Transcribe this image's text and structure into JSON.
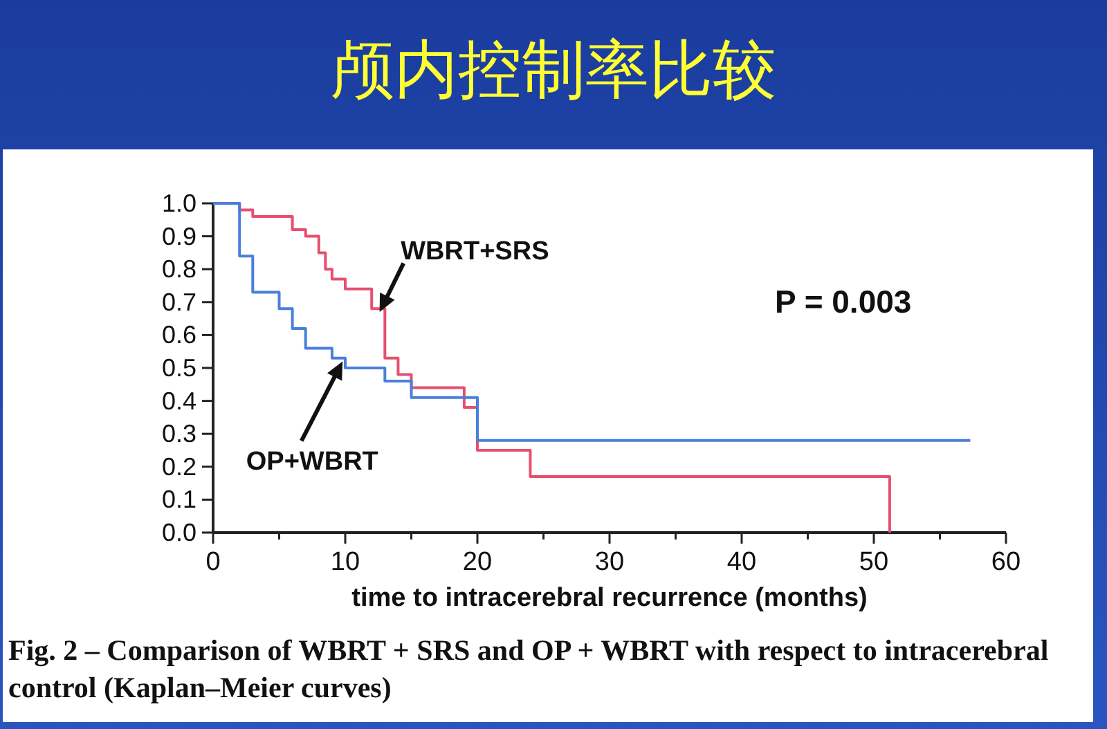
{
  "chart_data": {
    "type": "step",
    "title": "颅内控制率比较",
    "xlabel": "time to intracerebral recurrence (months)",
    "series": [
      {
        "name": "WBRT+SRS",
        "color": "#e6506e",
        "x": [
          0,
          2,
          3,
          6,
          7,
          8,
          8.5,
          9,
          10,
          12,
          13,
          14,
          15,
          19,
          20,
          24,
          51.2
        ],
        "values": [
          1,
          0.98,
          0.96,
          0.92,
          0.9,
          0.85,
          0.8,
          0.77,
          0.74,
          0.68,
          0.53,
          0.48,
          0.44,
          0.38,
          0.25,
          0.17,
          0
        ]
      },
      {
        "name": "OP+WBRT",
        "color": "#4a7fdc",
        "x": [
          0,
          2,
          3,
          5,
          6,
          7,
          9,
          10,
          13,
          15,
          20,
          57.3
        ],
        "values": [
          1,
          0.84,
          0.73,
          0.68,
          0.62,
          0.56,
          0.53,
          0.5,
          0.46,
          0.41,
          0.28,
          0.28
        ]
      }
    ],
    "xlim": [
      0,
      60
    ],
    "ylim": [
      0,
      1
    ],
    "xticks": [
      0,
      {
        "value": 5,
        "label": null
      },
      10,
      {
        "value": 15,
        "label": null
      },
      20,
      {
        "value": 25,
        "label": null
      },
      30,
      {
        "value": 35,
        "label": null
      },
      40,
      {
        "value": 45,
        "label": null
      },
      50,
      {
        "value": 55,
        "label": null
      },
      60
    ],
    "yticks": [
      {
        "value": 0,
        "label": "0.0"
      },
      {
        "value": 0.1,
        "label": "0.1"
      },
      {
        "value": 0.2,
        "label": "0.2"
      },
      {
        "value": 0.3,
        "label": "0.3"
      },
      {
        "value": 0.4,
        "label": "0.4"
      },
      {
        "value": 0.5,
        "label": "0.5"
      },
      {
        "value": 0.6,
        "label": "0.6"
      },
      {
        "value": 0.7,
        "label": "0.7"
      },
      {
        "value": 0.8,
        "label": "0.8"
      },
      {
        "value": 0.9,
        "label": "0.9"
      },
      {
        "value": 1,
        "label": "1.0"
      }
    ],
    "annotations": [
      "P = 0.003",
      "Fig. 2 – Comparison of WBRT + SRS and OP + WBRT with respect to intracerebral control (Kaplan–Meier curves)"
    ],
    "grid": false
  }
}
